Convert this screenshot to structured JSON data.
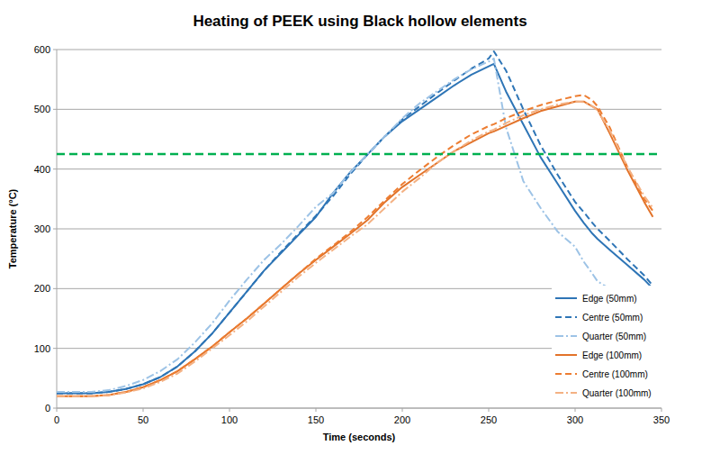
{
  "chart_data": {
    "type": "line",
    "title": "Heating of PEEK using Black hollow elements",
    "x_label": "Time (seconds)",
    "y_label": "Temperature (°C)",
    "x": [
      0,
      10,
      20,
      30,
      40,
      50,
      60,
      70,
      80,
      90,
      100,
      110,
      120,
      130,
      140,
      150,
      160,
      170,
      180,
      190,
      200,
      210,
      220,
      230,
      240,
      250,
      253,
      260,
      270,
      280,
      290,
      300,
      305,
      310,
      313,
      320,
      330,
      340,
      345,
      350
    ],
    "series": [
      {
        "name": "Edge (50mm)",
        "color": "#2e75b6",
        "line_style": "solid",
        "values": [
          25,
          25,
          25,
          27,
          32,
          40,
          52,
          70,
          95,
          125,
          160,
          195,
          230,
          260,
          290,
          320,
          360,
          395,
          425,
          455,
          480,
          500,
          520,
          540,
          558,
          572,
          576,
          530,
          475,
          420,
          375,
          330,
          310,
          292,
          283,
          265,
          240,
          215,
          200,
          null
        ]
      },
      {
        "name": "Centre (50mm)",
        "color": "#2e75b6",
        "line_style": "dashed",
        "values": [
          25,
          25,
          25,
          27,
          32,
          40,
          52,
          70,
          95,
          125,
          160,
          195,
          230,
          262,
          292,
          322,
          355,
          392,
          425,
          455,
          483,
          505,
          527,
          548,
          568,
          585,
          597,
          565,
          500,
          440,
          390,
          345,
          328,
          310,
          300,
          280,
          250,
          222,
          205,
          null
        ]
      },
      {
        "name": "Quarter (50mm)",
        "color": "#9dc3e6",
        "line_style": "dash-dot",
        "values": [
          27,
          27,
          27,
          30,
          37,
          47,
          62,
          82,
          110,
          142,
          180,
          215,
          248,
          275,
          305,
          337,
          360,
          395,
          425,
          455,
          485,
          510,
          530,
          550,
          567,
          580,
          585,
          470,
          380,
          335,
          295,
          270,
          245,
          225,
          212,
          200,
          null,
          null,
          null,
          null
        ]
      },
      {
        "name": "Edge (100mm)",
        "color": "#e2732a",
        "line_style": "solid",
        "values": [
          20,
          20,
          20,
          22,
          27,
          35,
          47,
          62,
          82,
          103,
          127,
          150,
          175,
          200,
          225,
          248,
          270,
          292,
          315,
          345,
          370,
          390,
          410,
          430,
          445,
          460,
          463,
          472,
          485,
          497,
          505,
          513,
          513,
          505,
          500,
          460,
          400,
          345,
          320,
          null
        ]
      },
      {
        "name": "Centre (100mm)",
        "color": "#ed7d31",
        "line_style": "dashed",
        "values": [
          20,
          20,
          20,
          22,
          27,
          35,
          47,
          62,
          82,
          103,
          127,
          150,
          175,
          200,
          225,
          250,
          272,
          295,
          320,
          348,
          375,
          398,
          420,
          440,
          458,
          472,
          475,
          485,
          497,
          507,
          515,
          522,
          524,
          515,
          505,
          470,
          405,
          350,
          330,
          null
        ]
      },
      {
        "name": "Quarter (100mm)",
        "color": "#f4b183",
        "line_style": "dash-dot",
        "values": [
          20,
          20,
          20,
          22,
          26,
          33,
          44,
          58,
          78,
          100,
          122,
          145,
          170,
          195,
          220,
          243,
          265,
          287,
          308,
          335,
          362,
          385,
          410,
          430,
          448,
          463,
          466,
          477,
          490,
          500,
          508,
          513,
          512,
          505,
          498,
          465,
          405,
          355,
          335,
          null
        ]
      },
      {
        "color": "#00b050",
        "line_style": "dashed",
        "values": [
          425,
          425,
          425,
          425,
          425,
          425,
          425,
          425,
          425,
          425,
          425,
          425,
          425,
          425,
          425,
          425,
          425,
          425,
          425,
          425,
          425,
          425,
          425,
          425,
          425,
          425,
          425,
          425,
          425,
          425,
          425,
          425,
          425,
          425,
          425,
          425,
          425,
          425,
          425,
          425
        ]
      }
    ],
    "xlim": [
      0,
      350
    ],
    "xticks": [
      0,
      50,
      100,
      150,
      200,
      250,
      300,
      350
    ],
    "ylim": [
      0,
      600
    ],
    "yticks": [
      0,
      100,
      200,
      300,
      400,
      500,
      600
    ],
    "grid": true,
    "legend": "lower-right"
  }
}
